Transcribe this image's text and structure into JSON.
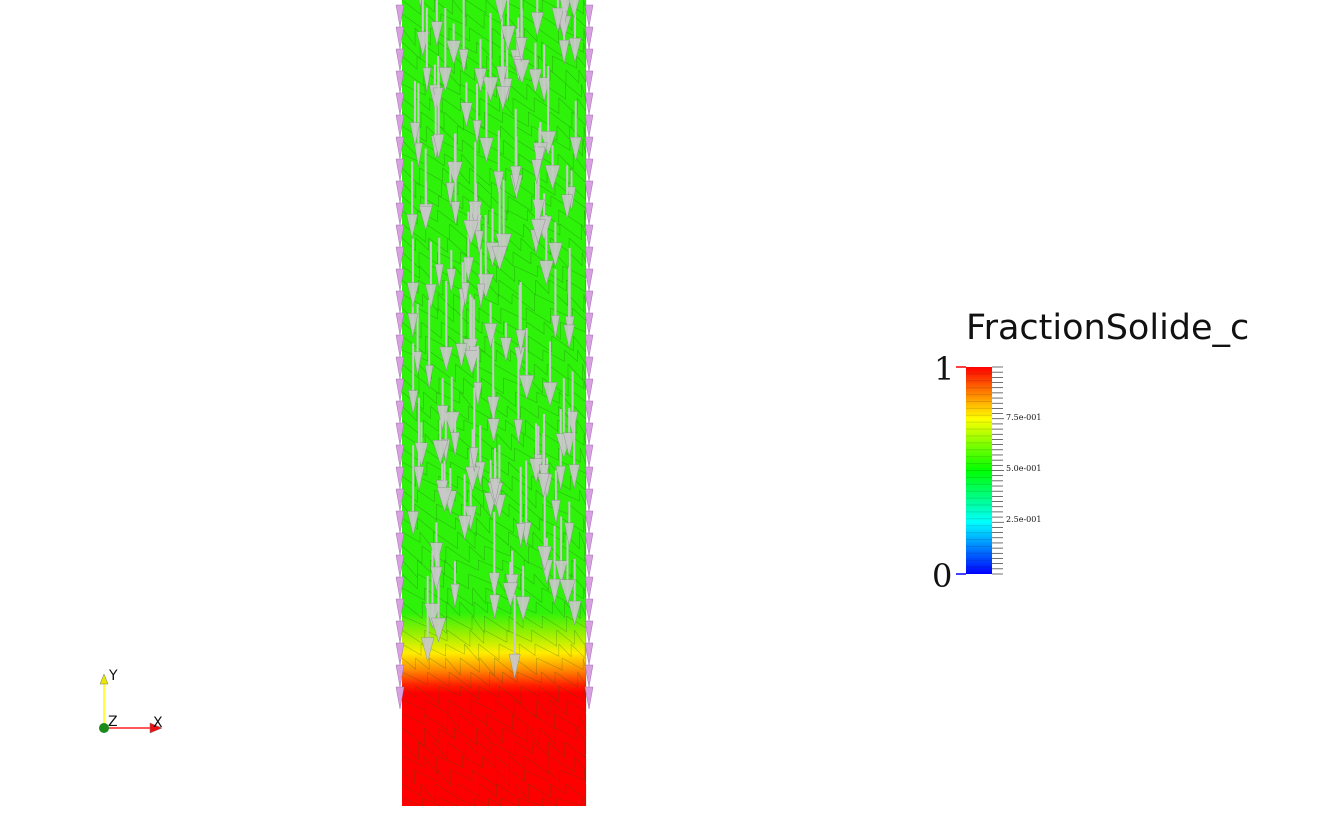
{
  "scalar_bar": {
    "title": "FractionSolide_c",
    "max_label": "1",
    "min_label": "0",
    "tick_labels": [
      "7.5e-001",
      "5.0e-001",
      "2.5e-001"
    ],
    "colormap": [
      "#0000ff",
      "#00ffff",
      "#00ff00",
      "#ffff00",
      "#ff0000"
    ]
  },
  "axes": {
    "x_label": "X",
    "y_label": "Y",
    "z_label": "Z",
    "x_color": "#ff2020",
    "y_color": "#ffff00",
    "z_color": "#1a8a1a"
  },
  "mesh": {
    "bulk_color": "#2ef20a",
    "solid_color": "#ff0000",
    "arrow_color": "#c8c8c8",
    "edge_arrow_color": "#d8a0e0"
  }
}
